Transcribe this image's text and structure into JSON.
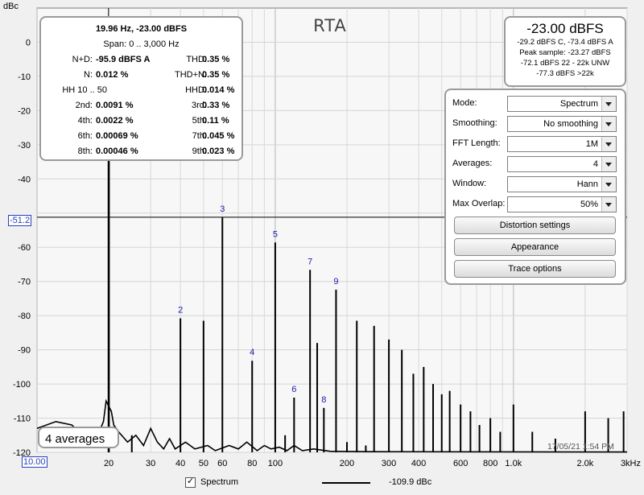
{
  "title": "RTA",
  "y_axis_unit": "dBc",
  "cursor_readout": "-51.2",
  "x_axis_start": "10.00",
  "date_stamp": "17/05/21 1:54 PM",
  "averages_badge": "4 averages",
  "stats": {
    "cursor": "19.96 Hz, -23.00 dBFS",
    "span": "Span: 0 .. 3,000 Hz",
    "rows": [
      {
        "l_label": "N+D:",
        "l_val": "-95.9 dBFS A",
        "r_label": "THD:",
        "r_val": "0.35 %"
      },
      {
        "l_label": "N:",
        "l_val": "0.012 %",
        "r_label": "THD+N:",
        "r_val": "0.35 %"
      },
      {
        "l_label": "HH 10 .. 50",
        "l_val": "",
        "r_label": "HHD:",
        "r_val": "0.014 %"
      },
      {
        "l_label": "2nd:",
        "l_val": "0.0091 %",
        "r_label": "3rd:",
        "r_val": "0.33 %"
      },
      {
        "l_label": "4th:",
        "l_val": "0.0022 %",
        "r_label": "5th:",
        "r_val": "0.11 %"
      },
      {
        "l_label": "6th:",
        "l_val": "0.00069 %",
        "r_label": "7th:",
        "r_val": "0.045 %"
      },
      {
        "l_label": "8th:",
        "l_val": "0.00046 %",
        "r_label": "9th:",
        "r_val": "0.023 %"
      }
    ]
  },
  "level": {
    "main": "-23.00 dBFS",
    "lines": [
      "-29.2 dBFS C, -73.4 dBFS A",
      "Peak sample: -23.27 dBFS",
      "-72.1 dBFS 22 - 22k UNW",
      "-77.3 dBFS >22k"
    ]
  },
  "controls": {
    "rows": [
      {
        "label": "Mode:",
        "value": "Spectrum"
      },
      {
        "label": "Smoothing:",
        "value": "No  smoothing"
      },
      {
        "label": "FFT Length:",
        "value": "1M"
      },
      {
        "label": "Averages:",
        "value": "4"
      },
      {
        "label": "Window:",
        "value": "Hann"
      },
      {
        "label": "Max Overlap:",
        "value": "50%"
      }
    ],
    "buttons": [
      "Distortion settings",
      "Appearance",
      "Trace options"
    ]
  },
  "legend": {
    "name": "Spectrum",
    "value": "-109.9 dBc",
    "checked": true
  },
  "chart_data": {
    "type": "line",
    "x_scale": "log",
    "xlim": [
      10,
      3000
    ],
    "ylim": [
      -120,
      10
    ],
    "y_ticks": [
      "0",
      "-10",
      "-20",
      "-30",
      "-40",
      "-51.2",
      "-60",
      "-70",
      "-80",
      "-90",
      "-100",
      "-110",
      "-120"
    ],
    "y_tick_values": [
      0,
      -10,
      -20,
      -30,
      -40,
      -51.2,
      -60,
      -70,
      -80,
      -90,
      -100,
      -110,
      -120
    ],
    "x_ticks": [
      "10.00",
      "20",
      "30",
      "40",
      "50",
      "60",
      "80",
      "100",
      "200",
      "300",
      "400",
      "600",
      "800",
      "1.0k",
      "2.0k",
      "3kHz"
    ],
    "x_tick_values": [
      10,
      20,
      30,
      40,
      50,
      60,
      80,
      100,
      200,
      300,
      400,
      600,
      800,
      1000,
      2000,
      3000
    ],
    "cursor": {
      "x": 19.96,
      "y": -51.2
    },
    "harmonics": [
      {
        "label": "2",
        "freq": 40,
        "level": -80.8
      },
      {
        "label": "3",
        "freq": 60,
        "level": -51.2
      },
      {
        "label": "4",
        "freq": 80,
        "level": -93.2
      },
      {
        "label": "5",
        "freq": 100,
        "level": -58.6
      },
      {
        "label": "6",
        "freq": 120,
        "level": -104
      },
      {
        "label": "7",
        "freq": 140,
        "level": -66.6
      },
      {
        "label": "8",
        "freq": 160,
        "level": -107
      },
      {
        "label": "9",
        "freq": 180,
        "level": -72.4
      }
    ],
    "other_peaks": [
      {
        "freq": 20,
        "level": -23
      },
      {
        "freq": 50,
        "level": -81.5
      },
      {
        "freq": 150,
        "level": -88
      },
      {
        "freq": 220,
        "level": -81.5
      },
      {
        "freq": 260,
        "level": -83
      },
      {
        "freq": 300,
        "level": -87
      },
      {
        "freq": 340,
        "level": -90
      },
      {
        "freq": 380,
        "level": -97
      },
      {
        "freq": 420,
        "level": -95
      },
      {
        "freq": 460,
        "level": -100
      },
      {
        "freq": 500,
        "level": -103
      },
      {
        "freq": 540,
        "level": -102
      },
      {
        "freq": 600,
        "level": -106
      },
      {
        "freq": 660,
        "level": -108
      },
      {
        "freq": 720,
        "level": -112
      },
      {
        "freq": 800,
        "level": -110
      },
      {
        "freq": 880,
        "level": -114
      },
      {
        "freq": 1000,
        "level": -106
      },
      {
        "freq": 1200,
        "level": -114
      },
      {
        "freq": 1500,
        "level": -116
      },
      {
        "freq": 2000,
        "level": -108
      },
      {
        "freq": 2500,
        "level": -110
      },
      {
        "freq": 2900,
        "level": -108
      },
      {
        "freq": 240,
        "level": -118
      },
      {
        "freq": 200,
        "level": -117
      },
      {
        "freq": 110,
        "level": -115
      },
      {
        "freq": 25,
        "level": -115
      }
    ],
    "noise_floor": [
      [
        10,
        -113
      ],
      [
        12,
        -111
      ],
      [
        14,
        -112
      ],
      [
        16,
        -116
      ],
      [
        17,
        -113
      ],
      [
        18,
        -115
      ],
      [
        19,
        -111
      ],
      [
        19.5,
        -105
      ],
      [
        20.5,
        -108
      ],
      [
        21,
        -112
      ],
      [
        22,
        -114
      ],
      [
        24,
        -117
      ],
      [
        26,
        -115
      ],
      [
        28,
        -118
      ],
      [
        30,
        -113
      ],
      [
        32,
        -117
      ],
      [
        34,
        -119
      ],
      [
        36,
        -116
      ],
      [
        38,
        -119
      ],
      [
        42,
        -117
      ],
      [
        46,
        -119
      ],
      [
        52,
        -118
      ],
      [
        56,
        -119.5
      ],
      [
        64,
        -118
      ],
      [
        70,
        -119
      ],
      [
        76,
        -117
      ],
      [
        84,
        -119.5
      ],
      [
        90,
        -118
      ],
      [
        96,
        -119
      ],
      [
        104,
        -118.5
      ],
      [
        112,
        -119.5
      ],
      [
        120,
        -118
      ],
      [
        130,
        -119.5
      ],
      [
        145,
        -119
      ],
      [
        170,
        -119.7
      ],
      [
        250,
        -119.8
      ],
      [
        3000,
        -119.9
      ]
    ]
  }
}
